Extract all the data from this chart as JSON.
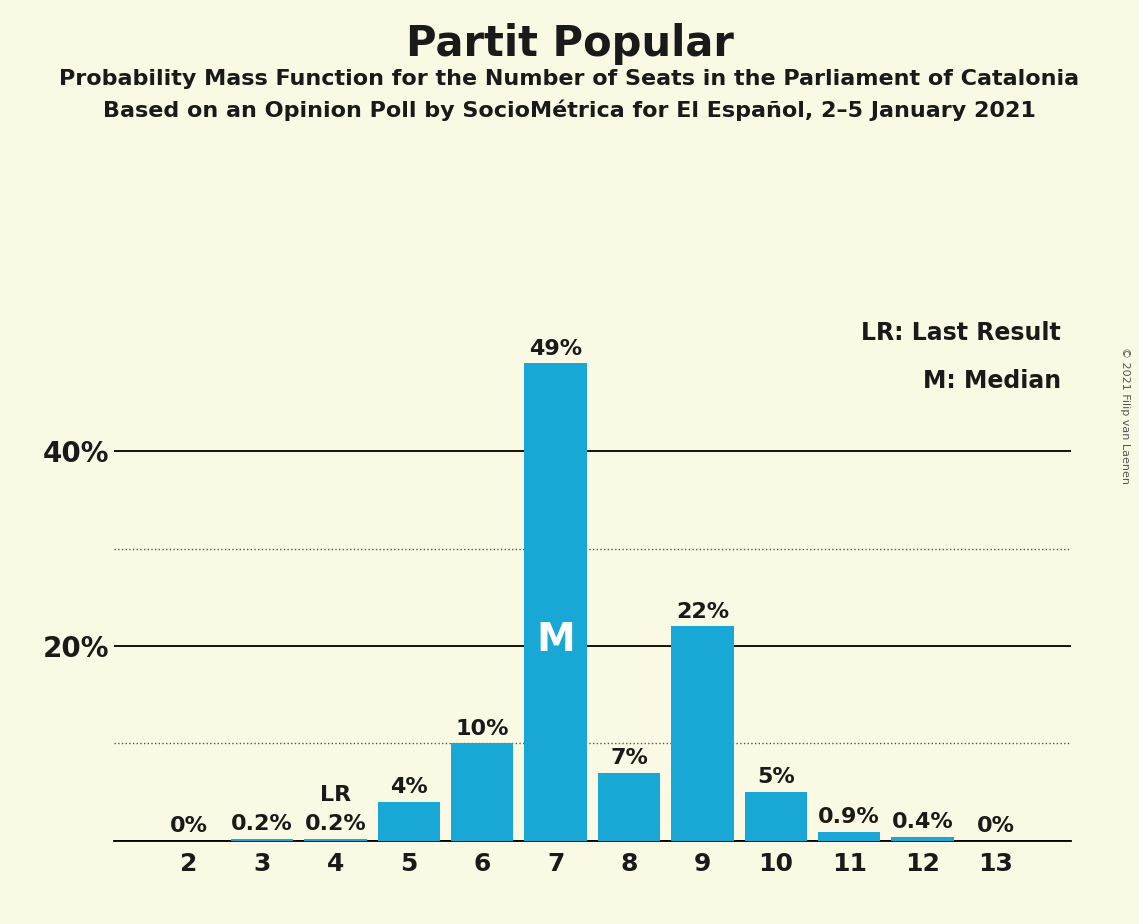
{
  "title": "Partit Popular",
  "subtitle1": "Probability Mass Function for the Number of Seats in the Parliament of Catalonia",
  "subtitle2": "Based on an Opinion Poll by SocioMétrica for El Español, 2–5 January 2021",
  "copyright": "© 2021 Filip van Laenen",
  "categories": [
    2,
    3,
    4,
    5,
    6,
    7,
    8,
    9,
    10,
    11,
    12,
    13
  ],
  "values": [
    0.0,
    0.2,
    0.2,
    4.0,
    10.0,
    49.0,
    7.0,
    22.0,
    5.0,
    0.9,
    0.4,
    0.0
  ],
  "labels": [
    "0%",
    "0.2%",
    "0.2%",
    "4%",
    "10%",
    "49%",
    "7%",
    "22%",
    "5%",
    "0.9%",
    "0.4%",
    "0%"
  ],
  "bar_color": "#19A8D6",
  "background_color": "#FAF9E4",
  "median_seat": 7,
  "lr_seat": 4,
  "legend_lr": "LR: Last Result",
  "legend_m": "M: Median",
  "solid_yticks": [
    0,
    20,
    40
  ],
  "dotted_yticks": [
    10,
    30
  ],
  "ylim": [
    0,
    55
  ],
  "title_fontsize": 30,
  "subtitle_fontsize": 16,
  "label_fontsize": 16,
  "tick_fontsize": 18,
  "legend_fontsize": 17,
  "ytick_label_fontsize": 20,
  "median_label_fontsize": 28
}
